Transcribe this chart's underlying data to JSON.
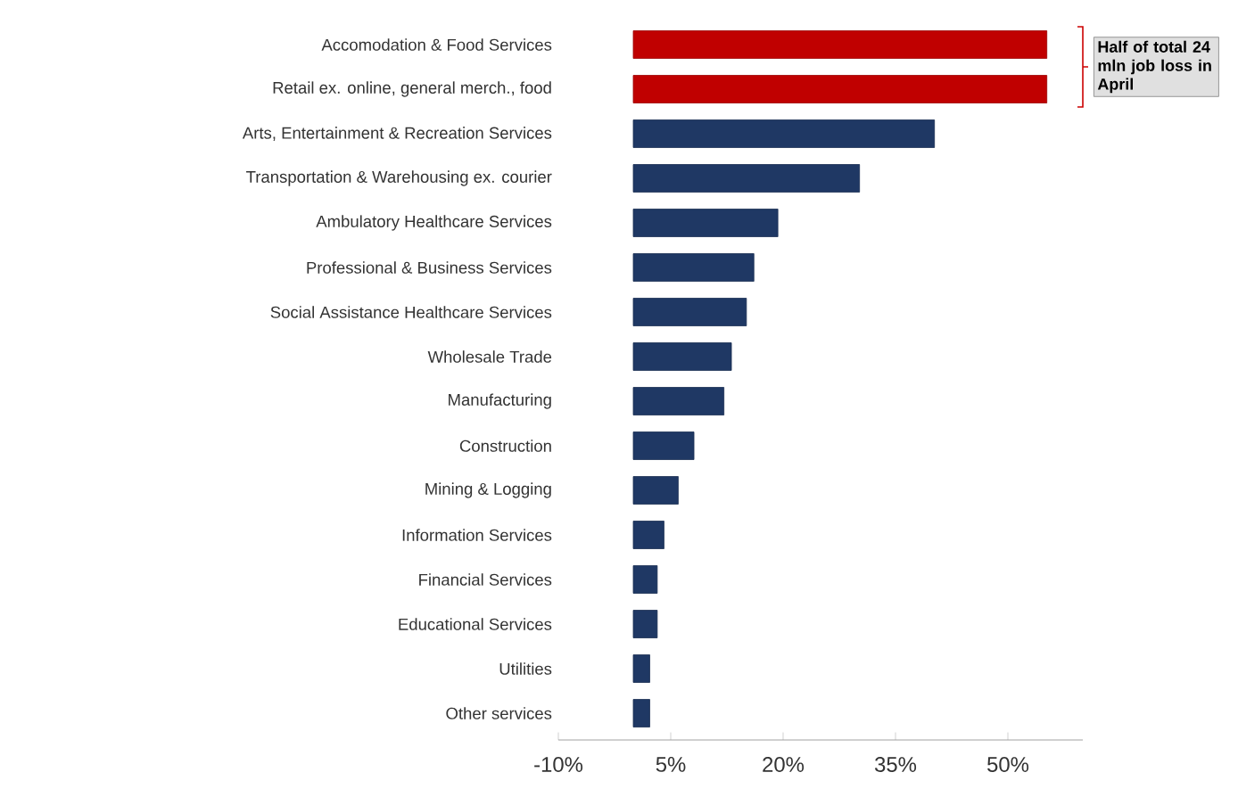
{
  "chart_data": {
    "type": "bar",
    "orientation": "horizontal",
    "categories": [
      "Accomodation & Food Services",
      "Retail ex. online, general merch., food",
      "Arts, Entertainment & Recreation Services",
      "Transportation & Warehousing ex. courier",
      "Ambulatory Healthcare Services",
      "Professional & Business Services",
      "Social Assistance Healthcare Services",
      "Wholesale Trade",
      "Manufacturing",
      "Construction",
      "Mining & Logging",
      "Information Services",
      "Financial Services",
      "Educational Services",
      "Utilities",
      "Other services"
    ],
    "values": [
      55.2,
      55.2,
      40.2,
      30.2,
      19.3,
      16.1,
      15.1,
      13.1,
      12.1,
      8.1,
      6.0,
      4.1,
      3.2,
      3.2,
      2.2,
      2.2
    ],
    "colors": [
      "#c00000",
      "#c00000",
      "#1f3864",
      "#1f3864",
      "#1f3864",
      "#1f3864",
      "#1f3864",
      "#1f3864",
      "#1f3864",
      "#1f3864",
      "#1f3864",
      "#1f3864",
      "#1f3864",
      "#1f3864",
      "#1f3864",
      "#1f3864"
    ],
    "xlim": [
      -10,
      60
    ],
    "xticks": [
      {
        "value": -10,
        "label": "-10%"
      },
      {
        "value": 5,
        "label": "5%"
      },
      {
        "value": 20,
        "label": "20%"
      },
      {
        "value": 35,
        "label": "35%"
      },
      {
        "value": 50,
        "label": "50%"
      }
    ],
    "annotations": [
      "Half of total 24 mln job loss in April"
    ]
  }
}
